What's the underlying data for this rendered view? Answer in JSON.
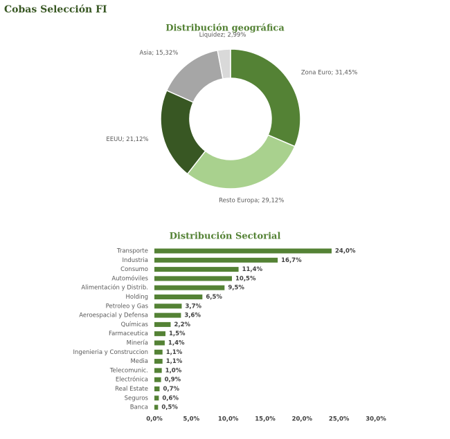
{
  "title": "Cobas Selección FI",
  "chart_data": [
    {
      "type": "donut",
      "title": "Distribución geográfica",
      "value_labels": [
        "Zona Euro; 31,45%",
        "Resto Europa; 29,12%",
        "EEUU; 21,12%",
        "Asia; 15,32%",
        "Liquidez; 2,99%"
      ],
      "values": [
        31.45,
        29.12,
        21.12,
        15.32,
        2.99
      ],
      "colors": [
        "#548235",
        "#a9d18e",
        "#385723",
        "#a6a6a6",
        "#d9d9d9"
      ]
    },
    {
      "type": "hbar",
      "title": "Distribución Sectorial",
      "categories": [
        "Transporte",
        "Industria",
        "Consumo",
        "Automóviles",
        "Alimentación y Distrib.",
        "Holding",
        "Petroleo y Gas",
        "Aeroespacial y Defensa",
        "Químicas",
        "Farmaceutica",
        "Minería",
        "Ingenieria y Construccion",
        "Media",
        "Telecomunic.",
        "Electrónica",
        "Real Estate",
        "Seguros",
        "Banca"
      ],
      "values": [
        24.0,
        16.7,
        11.4,
        10.5,
        9.5,
        6.5,
        3.7,
        3.6,
        2.2,
        1.5,
        1.4,
        1.1,
        1.1,
        1.0,
        0.9,
        0.7,
        0.6,
        0.5
      ],
      "value_labels": [
        "24,0%",
        "16,7%",
        "11,4%",
        "10,5%",
        "9,5%",
        "6,5%",
        "3,7%",
        "3,6%",
        "2,2%",
        "1,5%",
        "1,4%",
        "1,1%",
        "1,1%",
        "1,0%",
        "0,9%",
        "0,7%",
        "0,6%",
        "0,5%"
      ],
      "color": "#548235",
      "xlim": [
        0,
        30
      ],
      "xticks": [
        {
          "value": 0,
          "label": "0,0%"
        },
        {
          "value": 5,
          "label": "5,0%"
        },
        {
          "value": 10,
          "label": "10,0%"
        },
        {
          "value": 15,
          "label": "15,0%"
        },
        {
          "value": 20,
          "label": "20,0%"
        },
        {
          "value": 25,
          "label": "25,0%"
        },
        {
          "value": 30,
          "label": "30,0%"
        }
      ],
      "grid": false
    }
  ]
}
